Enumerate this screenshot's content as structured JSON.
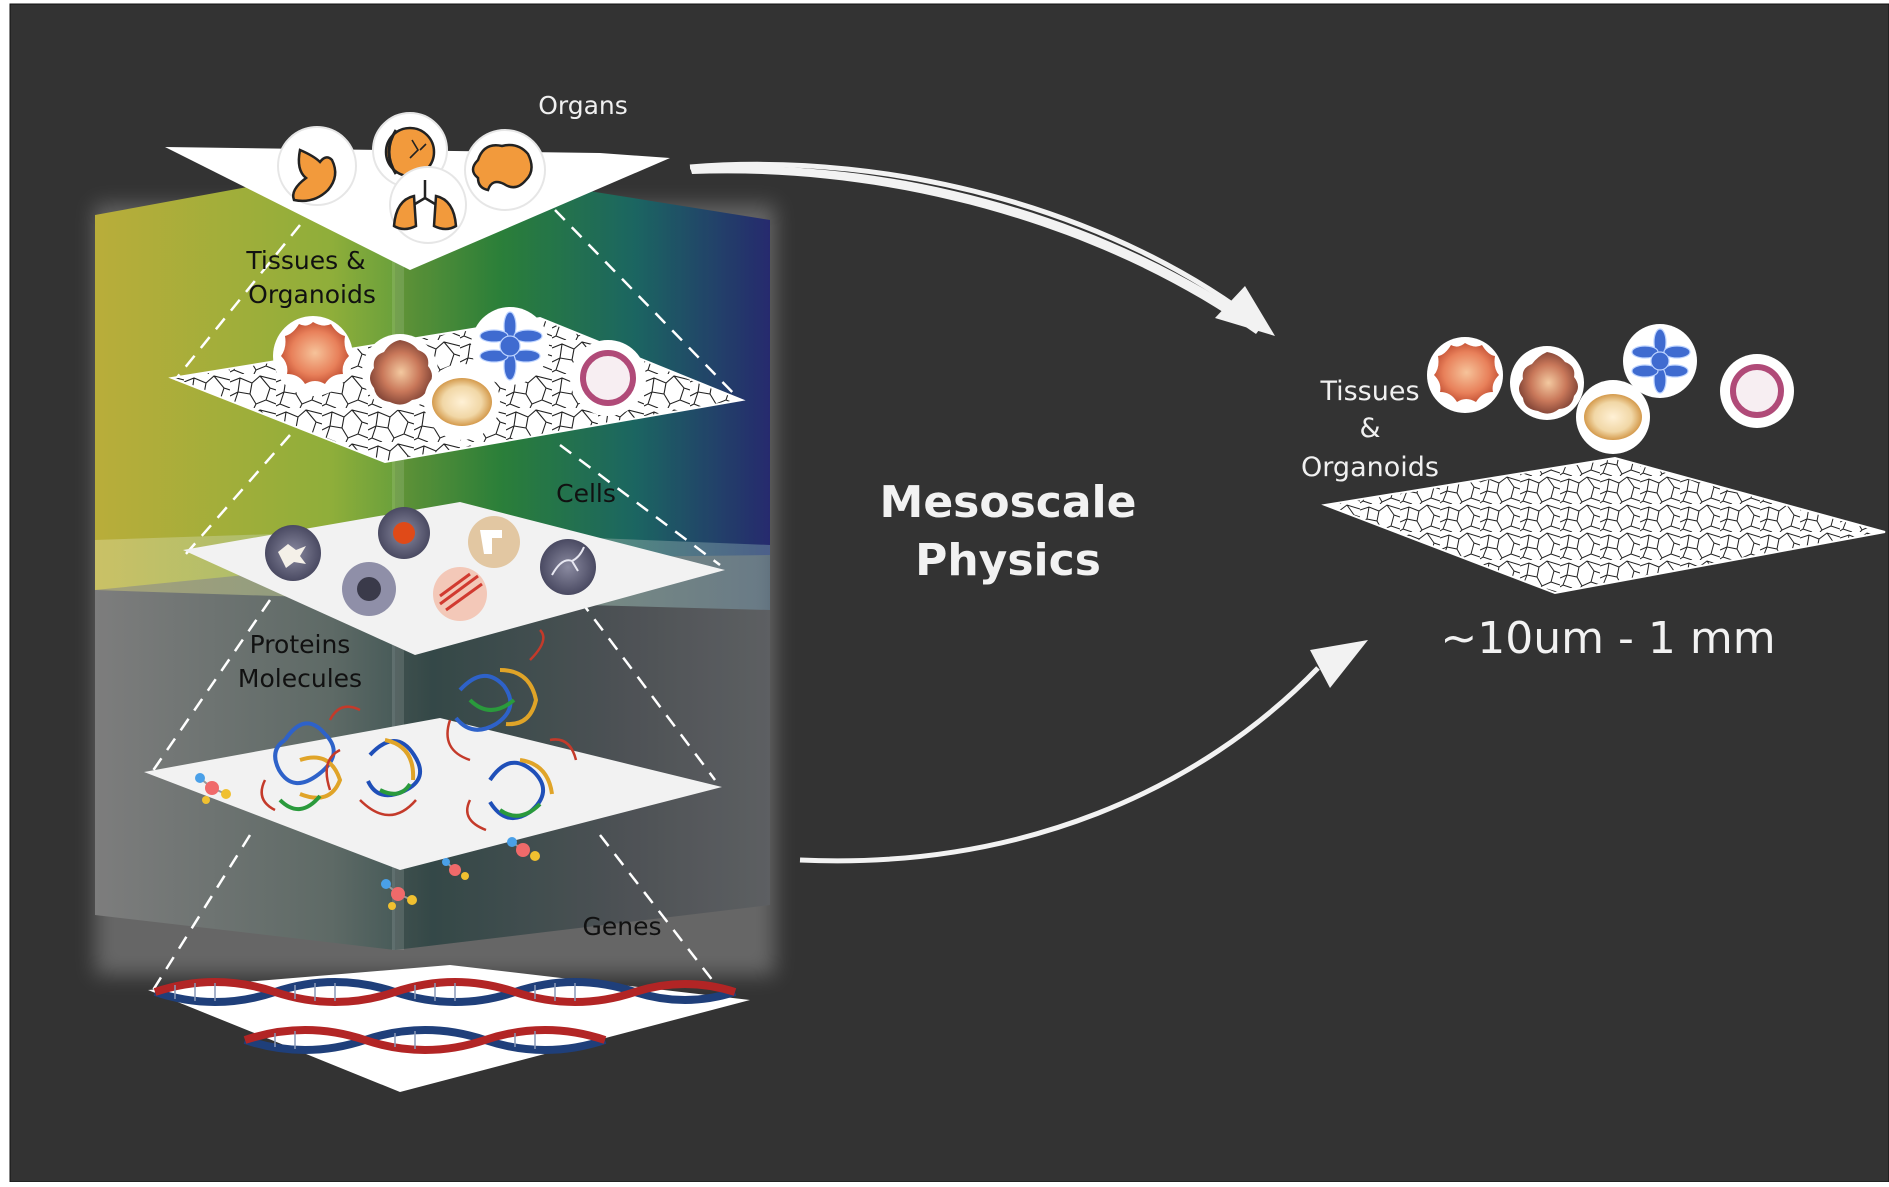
{
  "labels": {
    "organs": "Organs",
    "tissues_left": "Tissues &",
    "organoids_left": "Organoids",
    "cells": "Cells",
    "proteins": "Proteins",
    "molecules": "Molecules",
    "genes": "Genes",
    "tissues_right": "Tissues",
    "ampersand_right": "&",
    "organoids_right": "Organoids"
  },
  "center_title": {
    "line1": "Mesoscale",
    "line2": "Physics"
  },
  "scale": "~10um - 1 mm",
  "colors": {
    "background": "#333333",
    "frame": "#ffffff",
    "text_light": "#f0f0f0",
    "text_dark": "#111111",
    "arrow": "#f2f2f2"
  }
}
